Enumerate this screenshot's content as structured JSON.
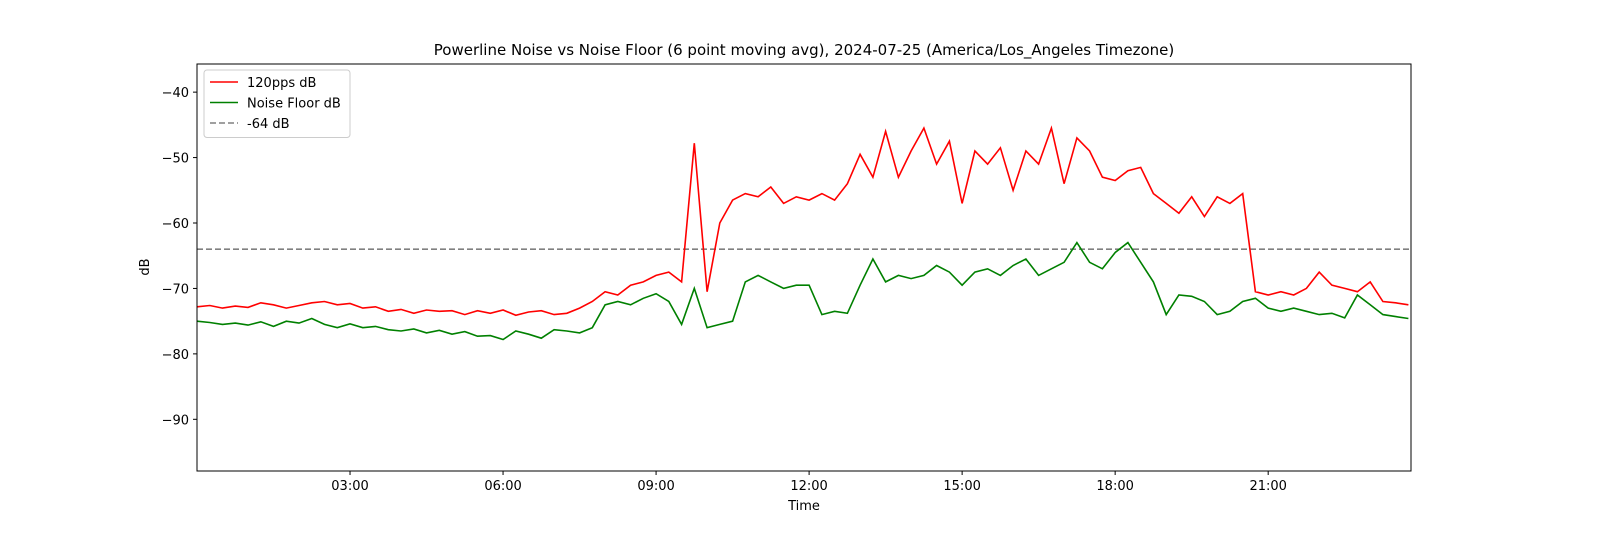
{
  "chart_data": {
    "type": "line",
    "title": "Powerline Noise vs Noise Floor (6 point moving avg), 2024-07-25 (America/Los_Angeles Timezone)",
    "xlabel": "Time",
    "ylabel": "dB",
    "ylabel_color": "#ff0000",
    "xlim": [
      0,
      23.8
    ],
    "ylim": [
      -97.9,
      -35.7
    ],
    "xticks": [
      {
        "value": 3,
        "label": "03:00"
      },
      {
        "value": 6,
        "label": "06:00"
      },
      {
        "value": 9,
        "label": "09:00"
      },
      {
        "value": 12,
        "label": "12:00"
      },
      {
        "value": 15,
        "label": "15:00"
      },
      {
        "value": 18,
        "label": "18:00"
      },
      {
        "value": 21,
        "label": "21:00"
      }
    ],
    "yticks": [
      {
        "value": -90,
        "label": "−90"
      },
      {
        "value": -80,
        "label": "−80"
      },
      {
        "value": -70,
        "label": "−70"
      },
      {
        "value": -60,
        "label": "−60"
      },
      {
        "value": -50,
        "label": "−50"
      },
      {
        "value": -40,
        "label": "−40"
      }
    ],
    "grid": false,
    "legend": "upper left",
    "x": [
      0,
      0.25,
      0.5,
      0.75,
      1,
      1.25,
      1.5,
      1.75,
      2,
      2.25,
      2.5,
      2.75,
      3,
      3.25,
      3.5,
      3.75,
      4,
      4.25,
      4.5,
      4.75,
      5,
      5.25,
      5.5,
      5.75,
      6,
      6.25,
      6.5,
      6.75,
      7,
      7.25,
      7.5,
      7.75,
      8,
      8.25,
      8.5,
      8.75,
      9,
      9.25,
      9.5,
      9.75,
      10,
      10.25,
      10.5,
      10.75,
      11,
      11.25,
      11.5,
      11.75,
      12,
      12.25,
      12.5,
      12.75,
      13,
      13.25,
      13.5,
      13.75,
      14,
      14.25,
      14.5,
      14.75,
      15,
      15.25,
      15.5,
      15.75,
      16,
      16.25,
      16.5,
      16.75,
      17,
      17.25,
      17.5,
      17.75,
      18,
      18.25,
      18.5,
      18.75,
      19,
      19.25,
      19.5,
      19.75,
      20,
      20.25,
      20.5,
      20.75,
      21,
      21.25,
      21.5,
      21.75,
      22,
      22.25,
      22.5,
      22.75,
      23,
      23.25,
      23.5,
      23.75
    ],
    "series": [
      {
        "name": "120pps dB",
        "color": "#ff0000",
        "values": [
          -72.8,
          -72.6,
          -73,
          -72.7,
          -72.9,
          -72.2,
          -72.5,
          -73,
          -72.6,
          -72.2,
          -72,
          -72.5,
          -72.3,
          -73,
          -72.8,
          -73.5,
          -73.2,
          -73.8,
          -73.3,
          -73.5,
          -73.4,
          -74,
          -73.4,
          -73.8,
          -73.3,
          -74.1,
          -73.6,
          -73.4,
          -74,
          -73.8,
          -73,
          -72,
          -70.5,
          -71,
          -69.5,
          -69,
          -68,
          -67.5,
          -69,
          -47.8,
          -70.5,
          -60,
          -56.5,
          -55.5,
          -56,
          -54.5,
          -57,
          -56,
          -56.5,
          -55.5,
          -56.5,
          -54,
          -49.5,
          -53,
          -46,
          -53,
          -49,
          -45.5,
          -51,
          -47.5,
          -57,
          -49,
          -51,
          -48.5,
          -55,
          -49,
          -51,
          -45.5,
          -54,
          -47,
          -49,
          -53,
          -53.5,
          -52,
          -51.5,
          -55.5,
          -57,
          -58.5,
          -56,
          -59,
          -56,
          -57,
          -55.5,
          -70.5,
          -71,
          -70.5,
          -71,
          -70,
          -67.5,
          -69.5,
          -70,
          -70.5,
          -69,
          -72,
          -72.2,
          -72.5
        ]
      },
      {
        "name": "Noise Floor dB",
        "color": "#008000",
        "values": [
          -75,
          -75.2,
          -75.5,
          -75.3,
          -75.6,
          -75.1,
          -75.8,
          -75,
          -75.3,
          -74.6,
          -75.5,
          -76,
          -75.4,
          -76,
          -75.8,
          -76.3,
          -76.5,
          -76.2,
          -76.8,
          -76.4,
          -77,
          -76.6,
          -77.3,
          -77.2,
          -77.8,
          -76.5,
          -77,
          -77.6,
          -76.3,
          -76.5,
          -76.8,
          -76,
          -72.5,
          -72,
          -72.5,
          -71.5,
          -70.8,
          -72,
          -75.5,
          -70,
          -76,
          -75.5,
          -75,
          -69,
          -68,
          -69,
          -70,
          -69.5,
          -69.5,
          -74,
          -73.5,
          -73.8,
          -69.5,
          -65.5,
          -69,
          -68,
          -68.5,
          -68,
          -66.5,
          -67.5,
          -69.5,
          -67.5,
          -67,
          -68,
          -66.5,
          -65.5,
          -68,
          -67,
          -66,
          -63,
          -66,
          -67,
          -64.5,
          -63,
          -66,
          -69,
          -74,
          -71,
          -71.2,
          -72,
          -74,
          -73.5,
          -72,
          -71.5,
          -73,
          -73.5,
          -73,
          -73.5,
          -74,
          -73.8,
          -74.5,
          -71,
          -72.5,
          -74,
          -74.3,
          -74.6
        ]
      }
    ],
    "reference_line": {
      "name": "-64 dB",
      "value": -64,
      "color": "#808080",
      "dashed": true
    }
  }
}
